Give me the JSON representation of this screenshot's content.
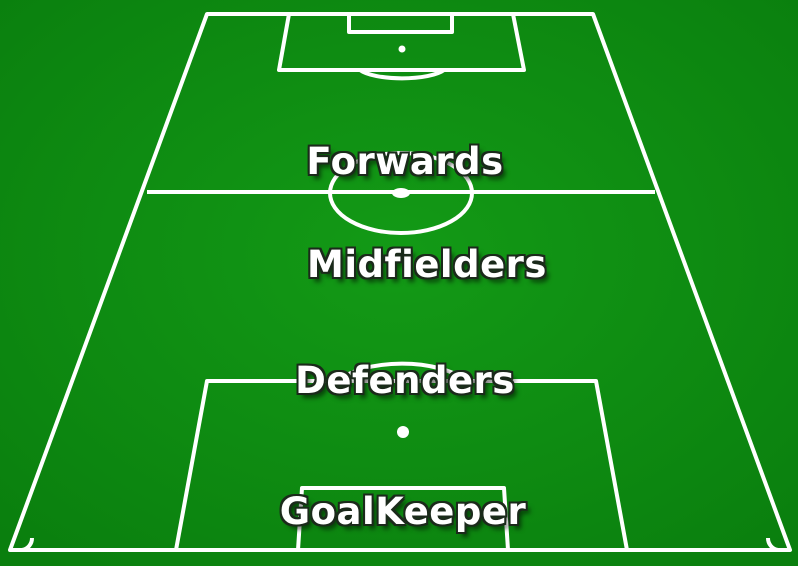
{
  "pitch": {
    "grass_color": "#0e8e12",
    "line_color": "#ffffff"
  },
  "positions": {
    "forwards": "Forwards",
    "midfielders": "Midfielders",
    "defenders": "Defenders",
    "goalkeeper": "GoalKeeper"
  }
}
